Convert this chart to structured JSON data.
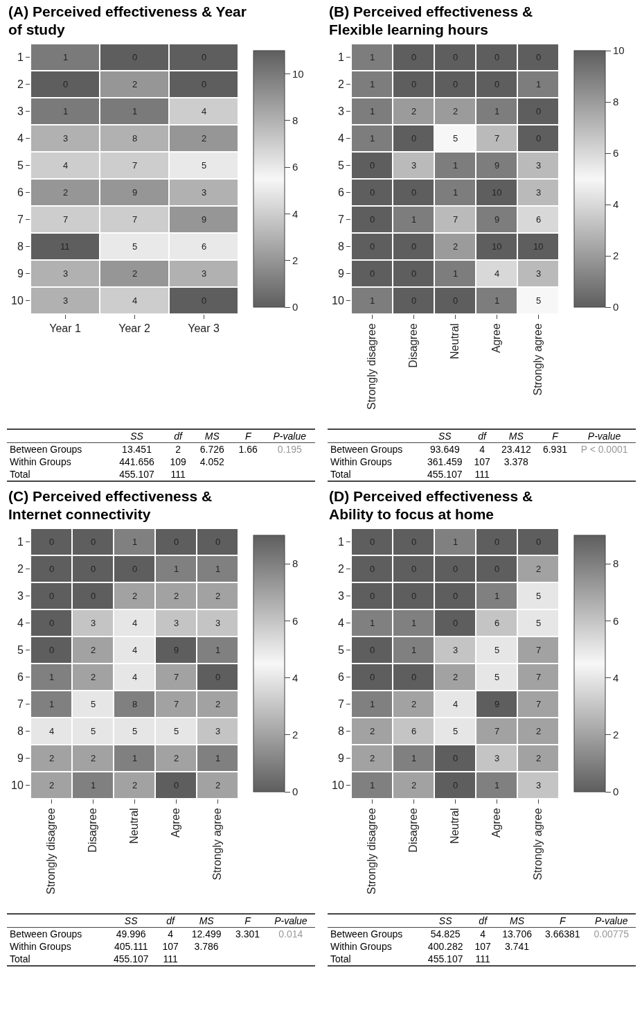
{
  "chart_data": [
    {
      "type": "heatmap",
      "title": "(A) Perceived effectiveness & Year of study",
      "categories": [
        "Year 1",
        "Year 2",
        "Year 3"
      ],
      "y_categories": [
        "1",
        "2",
        "3",
        "4",
        "5",
        "6",
        "7",
        "8",
        "9",
        "10"
      ],
      "cells": [
        [
          1,
          0,
          0
        ],
        [
          0,
          2,
          0
        ],
        [
          1,
          1,
          4
        ],
        [
          3,
          8,
          2
        ],
        [
          4,
          7,
          5
        ],
        [
          2,
          9,
          3
        ],
        [
          7,
          7,
          9
        ],
        [
          11,
          5,
          6
        ],
        [
          3,
          2,
          3
        ],
        [
          3,
          4,
          0
        ]
      ],
      "clim": [
        0,
        11
      ],
      "cticks": [
        0,
        2,
        4,
        6,
        8,
        10
      ],
      "data_labels": true,
      "annotations": [
        "SS",
        "df",
        "MS",
        "F",
        "P-value",
        "Between Groups",
        "13.451",
        "2",
        "6.726",
        "1.66",
        "0.195",
        "Within Groups",
        "441.656",
        "109",
        "4.052",
        "Total",
        "455.107",
        "111"
      ]
    },
    {
      "type": "heatmap",
      "title": "(B) Perceived effectiveness & Flexible learning hours",
      "categories": [
        "Strongly disagree",
        "Disagree",
        "Neutral",
        "Agree",
        "Strongly agree"
      ],
      "y_categories": [
        "1",
        "2",
        "3",
        "4",
        "5",
        "6",
        "7",
        "8",
        "9",
        "10"
      ],
      "cells": [
        [
          1,
          0,
          0,
          0,
          0
        ],
        [
          1,
          0,
          0,
          0,
          1
        ],
        [
          1,
          2,
          2,
          1,
          0
        ],
        [
          1,
          0,
          5,
          7,
          0
        ],
        [
          0,
          3,
          1,
          9,
          3
        ],
        [
          0,
          0,
          1,
          10,
          3
        ],
        [
          0,
          1,
          7,
          9,
          6
        ],
        [
          0,
          0,
          2,
          10,
          10
        ],
        [
          0,
          0,
          1,
          4,
          3
        ],
        [
          1,
          0,
          0,
          1,
          5
        ]
      ],
      "clim": [
        0,
        10
      ],
      "cticks": [
        0,
        2,
        4,
        6,
        8,
        10
      ],
      "data_labels": true,
      "annotations": [
        "SS",
        "df",
        "MS",
        "F",
        "P-value",
        "Between Groups",
        "93.649",
        "4",
        "23.412",
        "6.931",
        "P < 0.0001",
        "Within Groups",
        "361.459",
        "107",
        "3.378",
        "Total",
        "455.107",
        "111"
      ]
    },
    {
      "type": "heatmap",
      "title": "(C) Perceived effectiveness & Internet connectivity",
      "categories": [
        "Strongly disagree",
        "Disagree",
        "Neutral",
        "Agree",
        "Strongly agree"
      ],
      "y_categories": [
        "1",
        "2",
        "3",
        "4",
        "5",
        "6",
        "7",
        "8",
        "9",
        "10"
      ],
      "cells": [
        [
          0,
          0,
          1,
          0,
          0
        ],
        [
          0,
          0,
          0,
          1,
          1
        ],
        [
          0,
          0,
          2,
          2,
          2
        ],
        [
          0,
          3,
          4,
          3,
          3
        ],
        [
          0,
          2,
          4,
          9,
          1
        ],
        [
          1,
          2,
          4,
          7,
          0
        ],
        [
          1,
          5,
          8,
          7,
          2
        ],
        [
          4,
          5,
          5,
          5,
          3
        ],
        [
          2,
          2,
          1,
          2,
          1
        ],
        [
          2,
          1,
          2,
          0,
          2
        ]
      ],
      "clim": [
        0,
        9
      ],
      "cticks": [
        0,
        2,
        4,
        6,
        8
      ],
      "data_labels": true,
      "annotations": [
        "SS",
        "df",
        "MS",
        "F",
        "P-value",
        "Between Groups",
        "49.996",
        "4",
        "12.499",
        "3.301",
        "0.014",
        "Within Groups",
        "405.111",
        "107",
        "3.786",
        "Total",
        "455.107",
        "111"
      ]
    },
    {
      "type": "heatmap",
      "title": "(D) Perceived effectiveness & Ability to focus at home",
      "categories": [
        "Strongly disagree",
        "Disagree",
        "Neutral",
        "Agree",
        "Strongly agree"
      ],
      "y_categories": [
        "1",
        "2",
        "3",
        "4",
        "5",
        "6",
        "7",
        "8",
        "9",
        "10"
      ],
      "cells": [
        [
          0,
          0,
          1,
          0,
          0
        ],
        [
          0,
          0,
          0,
          0,
          2
        ],
        [
          0,
          0,
          0,
          1,
          5
        ],
        [
          1,
          1,
          0,
          6,
          5
        ],
        [
          0,
          1,
          3,
          5,
          7
        ],
        [
          0,
          0,
          2,
          5,
          7
        ],
        [
          1,
          2,
          4,
          9,
          7
        ],
        [
          2,
          6,
          5,
          7,
          2
        ],
        [
          2,
          1,
          0,
          3,
          2
        ],
        [
          1,
          2,
          0,
          1,
          3
        ]
      ],
      "clim": [
        0,
        9
      ],
      "cticks": [
        0,
        2,
        4,
        6,
        8
      ],
      "data_labels": true,
      "annotations": [
        "SS",
        "df",
        "MS",
        "F",
        "P-value",
        "Between Groups",
        "54.825",
        "4",
        "13.706",
        "3.66381",
        "0.00775",
        "Within Groups",
        "400.282",
        "107",
        "3.741",
        "Total",
        "455.107",
        "111"
      ]
    }
  ]
}
